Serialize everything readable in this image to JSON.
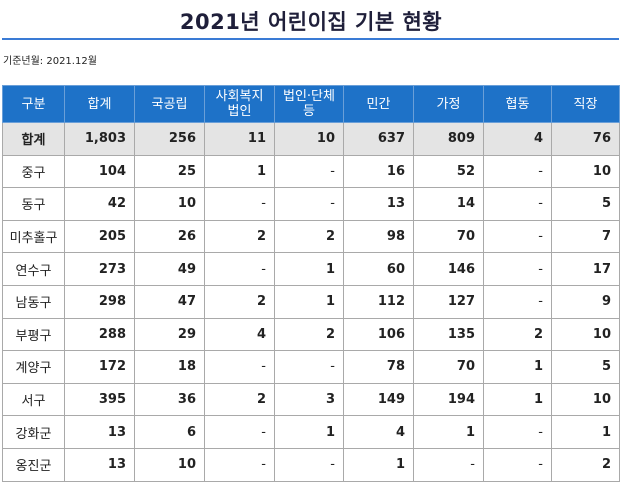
{
  "title": "2021년 어린이집 기본 현황",
  "basis": "기준년월: 2021.12월",
  "columns": [
    "구분",
    "합계",
    "국공립",
    "사회복지\n법인",
    "법인·단체\n등",
    "민간",
    "가정",
    "협동",
    "직장"
  ],
  "rows": [
    [
      "합계",
      "1,803",
      "256",
      "11",
      "10",
      "637",
      "809",
      "4",
      "76"
    ],
    [
      "중구",
      "104",
      "25",
      "1",
      "-",
      "16",
      "52",
      "-",
      "10"
    ],
    [
      "동구",
      "42",
      "10",
      "-",
      "-",
      "13",
      "14",
      "-",
      "5"
    ],
    [
      "미추홀구",
      "205",
      "26",
      "2",
      "2",
      "98",
      "70",
      "-",
      "7"
    ],
    [
      "연수구",
      "273",
      "49",
      "-",
      "1",
      "60",
      "146",
      "-",
      "17"
    ],
    [
      "남동구",
      "298",
      "47",
      "2",
      "1",
      "112",
      "127",
      "-",
      "9"
    ],
    [
      "부평구",
      "288",
      "29",
      "4",
      "2",
      "106",
      "135",
      "2",
      "10"
    ],
    [
      "계양구",
      "172",
      "18",
      "-",
      "-",
      "78",
      "70",
      "1",
      "5"
    ],
    [
      "서구",
      "395",
      "36",
      "2",
      "3",
      "149",
      "194",
      "1",
      "10"
    ],
    [
      "강화군",
      "13",
      "6",
      "-",
      "1",
      "4",
      "1",
      "-",
      "1"
    ],
    [
      "옹진군",
      "13",
      "10",
      "-",
      "-",
      "1",
      "-",
      "-",
      "2"
    ]
  ],
  "colors": {
    "header_bg": "#1e72c8",
    "title_rule": "#3a7bd5",
    "total_row_bg": "#e4e4e4"
  }
}
